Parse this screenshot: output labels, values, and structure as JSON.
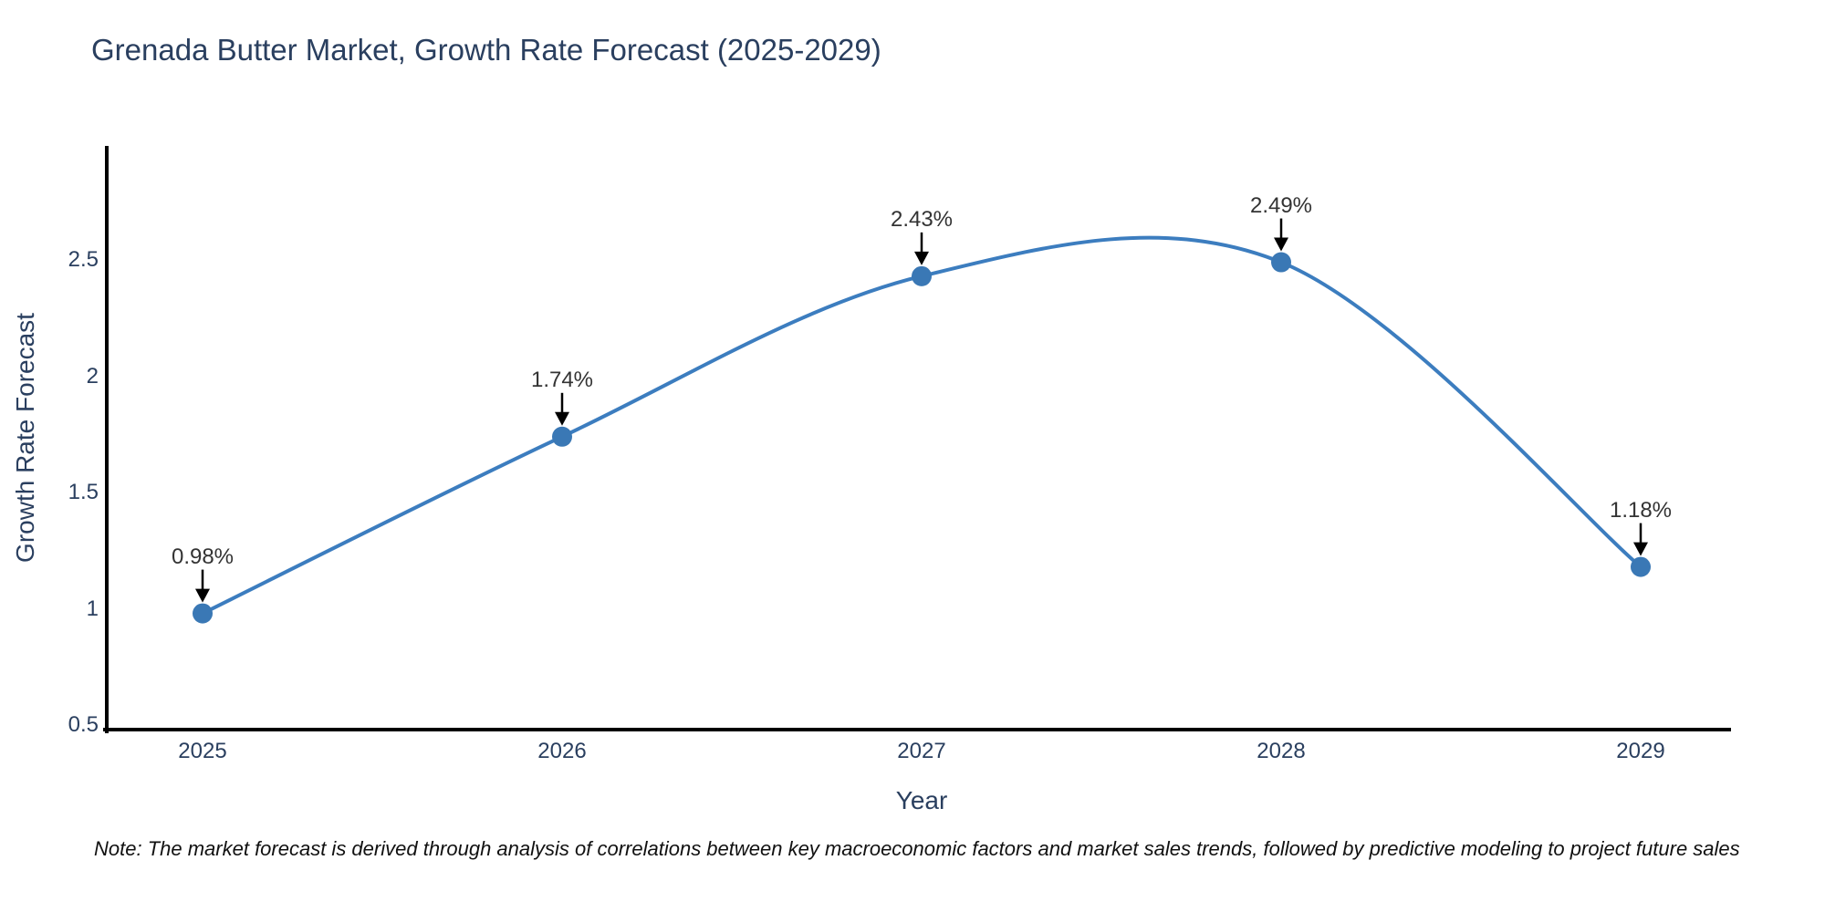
{
  "chart_data": {
    "type": "line",
    "title": "Grenada Butter Market, Growth Rate Forecast (2025-2029)",
    "xlabel": "Year",
    "ylabel": "Growth Rate Forecast",
    "categories": [
      "2025",
      "2026",
      "2027",
      "2028",
      "2029"
    ],
    "values": [
      0.98,
      1.74,
      2.43,
      2.49,
      1.18
    ],
    "point_labels": [
      "0.98%",
      "1.74%",
      "2.43%",
      "2.49%",
      "1.18%"
    ],
    "y_ticks": [
      {
        "value": 0.5,
        "label": "0.5"
      },
      {
        "value": 1.0,
        "label": "1"
      },
      {
        "value": 1.5,
        "label": "1.5"
      },
      {
        "value": 2.0,
        "label": "2"
      },
      {
        "value": 2.5,
        "label": "2.5"
      }
    ],
    "ylim": [
      0.5,
      3.0
    ],
    "grid": false,
    "legend": "none",
    "line_shape": "spline",
    "annotation_style": "value label with down arrow to marker",
    "colors": {
      "line": "#3c7dbf",
      "marker": "#3a78b5",
      "axis_spine": "#000000",
      "title_text": "#2a3f5f",
      "tick_text": "#2a3f5f",
      "annotation_text": "#333333",
      "arrow": "#000000"
    }
  },
  "footnote": "Note: The market forecast is derived through analysis of correlations between key macroeconomic factors and market sales trends, followed by predictive modeling to project future sales"
}
